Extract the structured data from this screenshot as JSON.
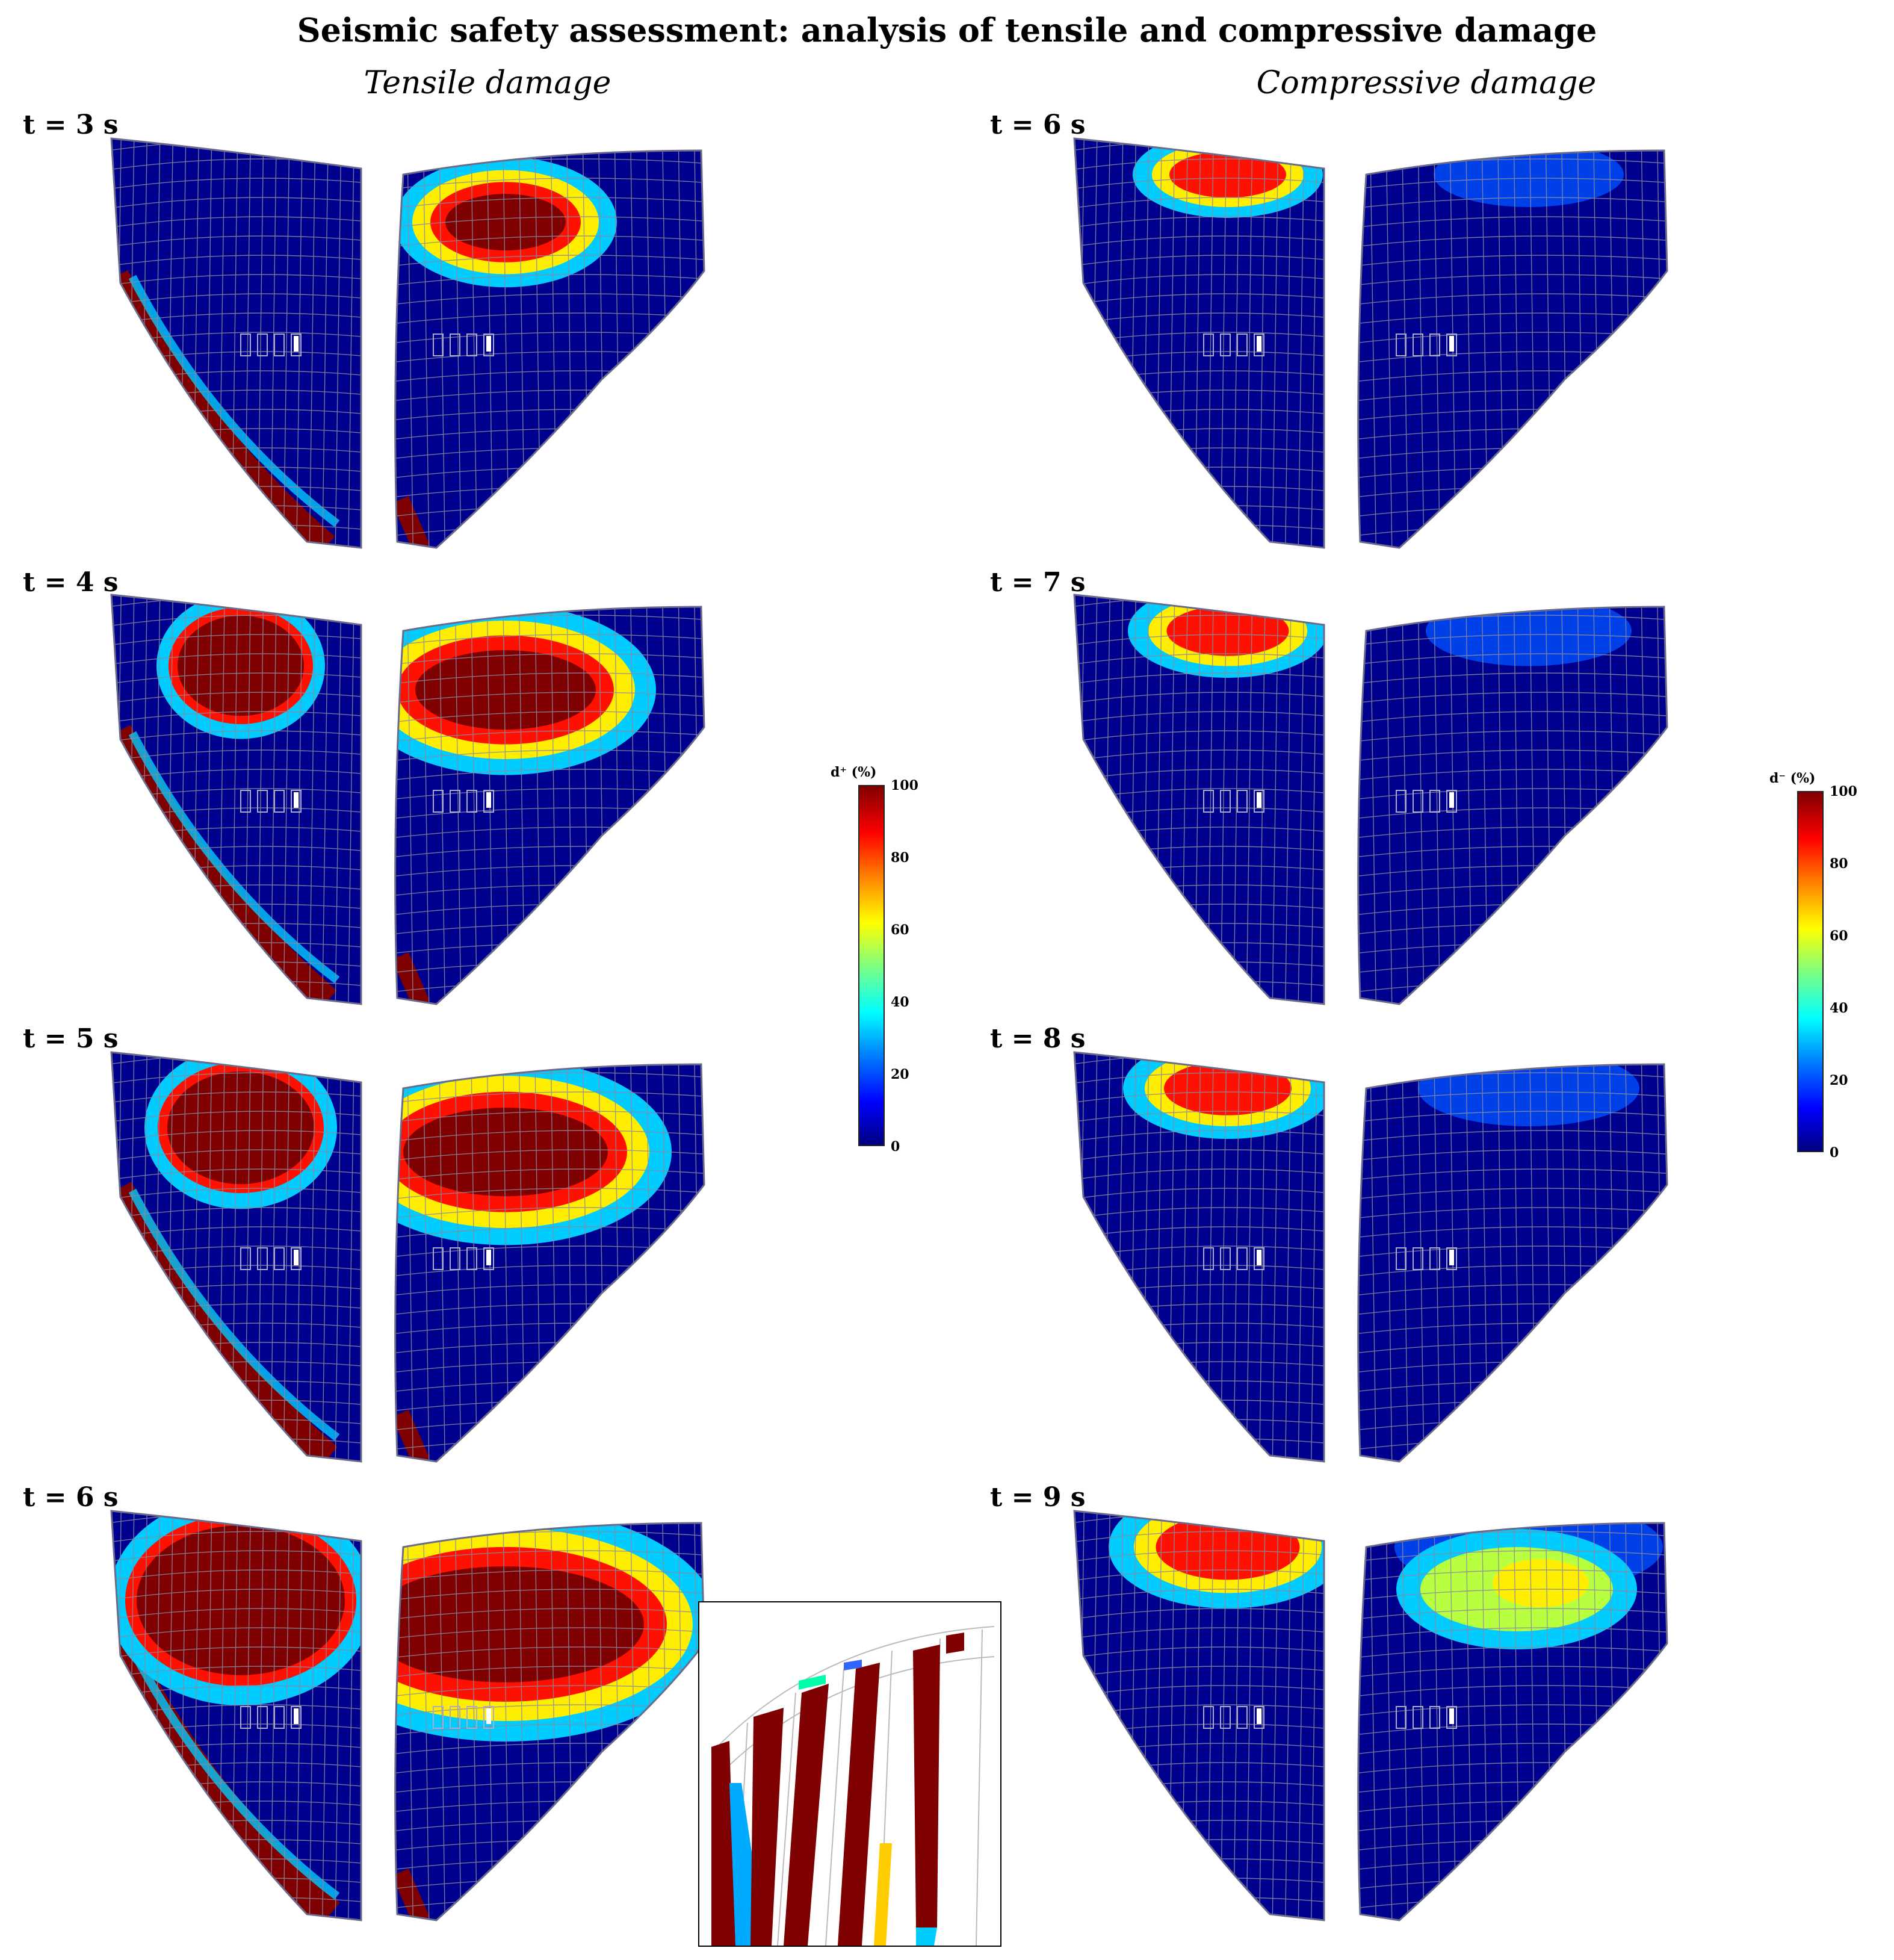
{
  "title": "Seismic safety assessment: analysis of tensile and compressive damage",
  "columns": {
    "tensile": "Tensile damage",
    "compressive": "Compressive damage"
  },
  "tensile_panels": [
    {
      "time": "t = 3 s",
      "level": 0.25
    },
    {
      "time": "t = 4 s",
      "level": 0.5
    },
    {
      "time": "t = 5 s",
      "level": 0.6
    },
    {
      "time": "t = 6 s",
      "level": 0.9
    }
  ],
  "compressive_panels": [
    {
      "time": "t = 6 s",
      "level": 0.3
    },
    {
      "time": "t = 7 s",
      "level": 0.35
    },
    {
      "time": "t = 8 s",
      "level": 0.4
    },
    {
      "time": "t = 9 s",
      "level": 0.55
    }
  ],
  "colorbars": {
    "tensile_title": "d⁺ (%)",
    "compressive_title": "d⁻ (%)",
    "ticks": [
      "100",
      "80",
      "60",
      "40",
      "20",
      "0"
    ]
  },
  "colors": {
    "base": "#00008f",
    "mesh": "#8a8aa0",
    "dark_red": "#7f0000",
    "red": "#ff1000",
    "yellow": "#ffee00",
    "cyan": "#00ccff"
  }
}
